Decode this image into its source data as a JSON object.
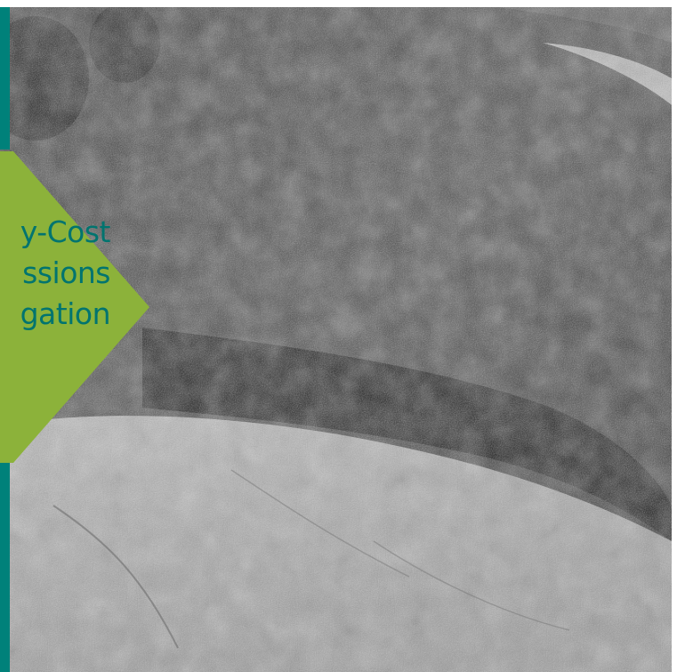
{
  "label": {
    "lines": [
      "y-Cost",
      "ssions",
      "gation"
    ]
  },
  "colors": {
    "teal": "#00817a",
    "green": "#8cb23a",
    "text": "#00746f"
  }
}
